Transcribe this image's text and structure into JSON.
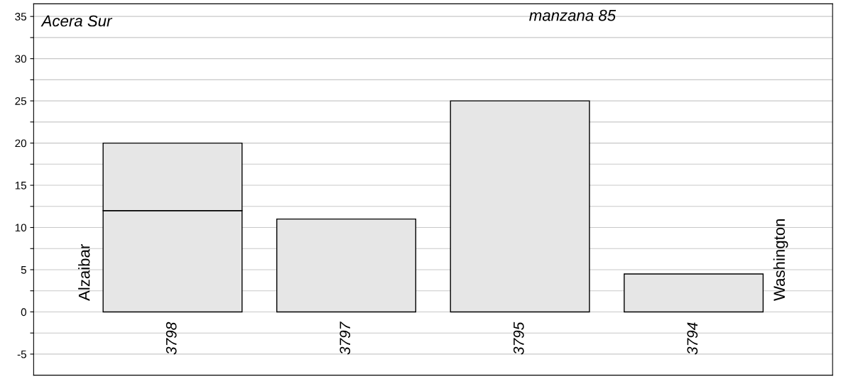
{
  "chart_data": {
    "type": "bar",
    "stacked": true,
    "categories": [
      "3798",
      "3797",
      "3795",
      "3794"
    ],
    "series": [
      {
        "color": "#e6e6e6",
        "values": [
          12,
          11,
          25,
          4.5
        ]
      },
      {
        "color": "#e6e6e6",
        "values": [
          8,
          null,
          null,
          null
        ]
      }
    ],
    "ylim": [
      -7.5,
      36.5
    ],
    "yticks": [
      -5,
      {
        "value": -2.5,
        "label": null
      },
      0,
      {
        "value": 2.5,
        "label": null
      },
      5,
      {
        "value": 7.5,
        "label": null
      },
      10,
      {
        "value": 12.5,
        "label": null
      },
      15,
      {
        "value": 17.5,
        "label": null
      },
      20,
      {
        "value": 22.5,
        "label": null
      },
      25,
      {
        "value": 27.5,
        "label": null
      },
      30,
      {
        "value": 32.5,
        "label": null
      },
      35
    ],
    "grid": "y",
    "legend": false,
    "annotations": [
      "Acera Sur",
      "manzana 85",
      "Alzaibar",
      "Washington"
    ]
  }
}
